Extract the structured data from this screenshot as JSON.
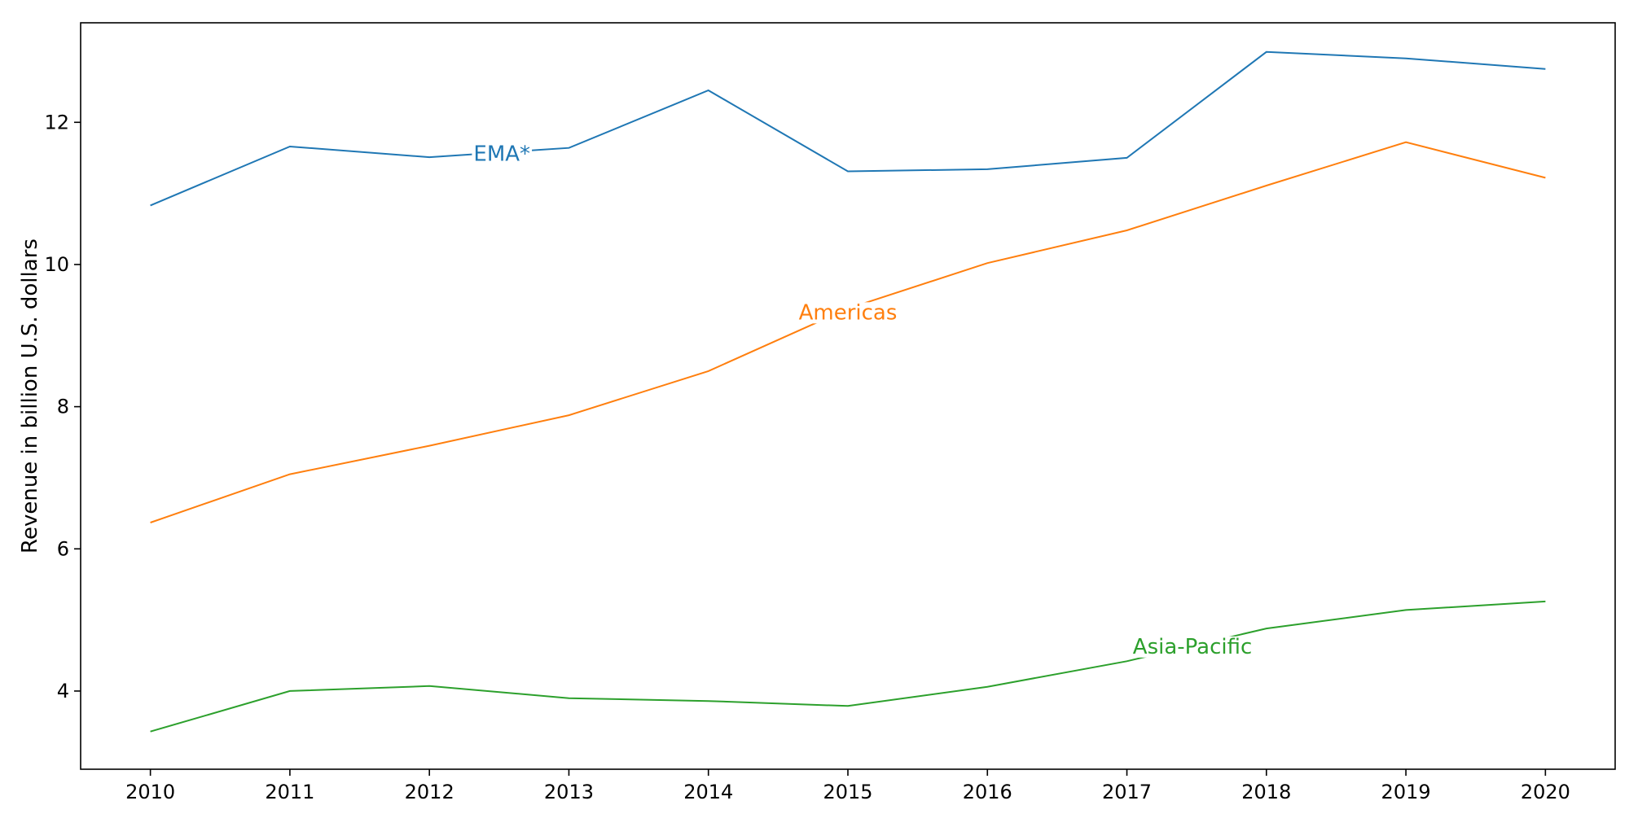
{
  "chart_data": {
    "type": "line",
    "title": "",
    "xlabel": "",
    "ylabel": "Revenue in billion U.S. dollars",
    "x": [
      2010,
      2011,
      2012,
      2013,
      2014,
      2015,
      2016,
      2017,
      2018,
      2019,
      2020
    ],
    "x_tick_labels": [
      "2010",
      "2011",
      "2012",
      "2013",
      "2014",
      "2015",
      "2016",
      "2017",
      "2018",
      "2019",
      "2020"
    ],
    "xlim": [
      2009.5,
      2020.5
    ],
    "ylim": [
      2.9,
      13.4
    ],
    "y_ticks": [
      4,
      6,
      8,
      10,
      12
    ],
    "y_tick_labels": [
      "4",
      "6",
      "8",
      "10",
      "12"
    ],
    "grid": false,
    "legend": "none",
    "series": [
      {
        "name": "EMA*",
        "color": "#1f77b4",
        "values": [
          10.83,
          11.66,
          11.51,
          11.64,
          12.45,
          11.31,
          11.34,
          11.5,
          12.99,
          12.9,
          12.75
        ],
        "label_at": {
          "x": 2012.52,
          "y": 11.55
        }
      },
      {
        "name": "Americas",
        "color": "#ff7f0e",
        "values": [
          6.37,
          7.05,
          7.45,
          7.88,
          8.5,
          9.38,
          10.02,
          10.48,
          11.11,
          11.72,
          11.22
        ],
        "label_at": {
          "x": 2015.0,
          "y": 9.32
        }
      },
      {
        "name": "Asia-Pacific",
        "color": "#2ca02c",
        "values": [
          3.43,
          4.0,
          4.07,
          3.9,
          3.86,
          3.79,
          4.06,
          4.42,
          4.88,
          5.14,
          5.26
        ],
        "label_at": {
          "x": 2017.47,
          "y": 4.62
        }
      }
    ]
  }
}
